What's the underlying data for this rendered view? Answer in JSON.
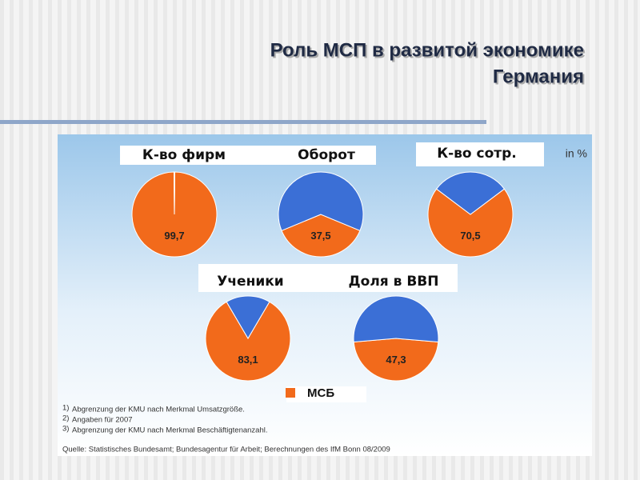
{
  "title": [
    "Роль МСП в развитой экономике",
    "Германия"
  ],
  "unit_note": "in %",
  "legend": "МСБ",
  "footnotes": [
    {
      "mark": "1)",
      "text": "Abgrenzung der KMU nach Merkmal Umsatzgröße."
    },
    {
      "mark": "2)",
      "text": "Angaben für 2007"
    },
    {
      "mark": "3)",
      "text": "Abgrenzung der KMU nach Merkmal Beschäftigtenanzahl."
    }
  ],
  "source": "Quelle:  Statistisches Bundesamt; Bundesagentur für Arbeit; Berechnungen des IfM Bonn 08/2009",
  "chart_data": [
    {
      "type": "pie",
      "title": "К-во фирм",
      "categories": [
        "МСБ",
        null
      ],
      "values": [
        99.7,
        0.3
      ],
      "value_labels": [
        "99,7",
        null
      ],
      "colors": [
        "#f26a1b",
        "#3b6fd6"
      ]
    },
    {
      "type": "pie",
      "title": "Оборот",
      "categories": [
        "МСБ",
        null
      ],
      "values": [
        37.5,
        62.5
      ],
      "value_labels": [
        "37,5",
        null
      ],
      "colors": [
        "#f26a1b",
        "#3b6fd6"
      ]
    },
    {
      "type": "pie",
      "title": "К-во сотр.",
      "categories": [
        "МСБ",
        null
      ],
      "values": [
        70.5,
        29.5
      ],
      "value_labels": [
        "70,5",
        null
      ],
      "colors": [
        "#f26a1b",
        "#3b6fd6"
      ]
    },
    {
      "type": "pie",
      "title": "Ученики",
      "categories": [
        "МСБ",
        null
      ],
      "values": [
        83.1,
        16.9
      ],
      "value_labels": [
        "83,1",
        null
      ],
      "colors": [
        "#f26a1b",
        "#3b6fd6"
      ]
    },
    {
      "type": "pie",
      "title": "Доля в ВВП",
      "categories": [
        "МСБ",
        null
      ],
      "values": [
        47.3,
        52.7
      ],
      "value_labels": [
        "47,3",
        null
      ],
      "colors": [
        "#f26a1b",
        "#3b6fd6"
      ]
    }
  ]
}
